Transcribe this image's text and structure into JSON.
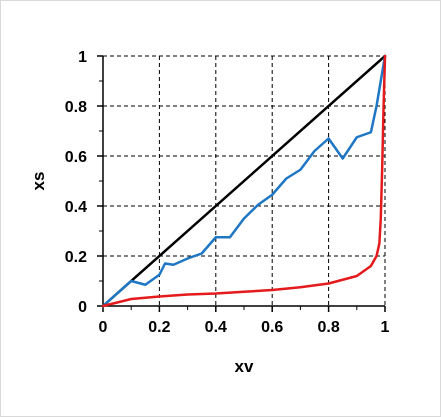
{
  "chart_data": {
    "type": "line",
    "title": "",
    "xlabel": "xv",
    "ylabel": "xs",
    "xlim": [
      0,
      1
    ],
    "ylim": [
      0,
      1
    ],
    "x_ticks": [
      "0",
      "0.2",
      "0.4",
      "0.6",
      "0.8",
      "1"
    ],
    "y_ticks": [
      "0",
      "0.2",
      "0.4",
      "0.6",
      "0.8",
      "1"
    ],
    "x_tick_values": [
      0,
      0.2,
      0.4,
      0.6,
      0.8,
      1
    ],
    "y_tick_values": [
      0,
      0.2,
      0.4,
      0.6,
      0.8,
      1
    ],
    "grid": "dashed",
    "legend": "none",
    "series": [
      {
        "color": "#000000",
        "points": [
          [
            0,
            0
          ],
          [
            1,
            1
          ]
        ]
      },
      {
        "color": "#1f77c4",
        "points": [
          [
            0,
            0
          ],
          [
            0.05,
            0.05
          ],
          [
            0.1,
            0.1
          ],
          [
            0.15,
            0.085
          ],
          [
            0.2,
            0.125
          ],
          [
            0.22,
            0.17
          ],
          [
            0.25,
            0.165
          ],
          [
            0.3,
            0.19
          ],
          [
            0.35,
            0.21
          ],
          [
            0.4,
            0.275
          ],
          [
            0.45,
            0.275
          ],
          [
            0.5,
            0.35
          ],
          [
            0.55,
            0.405
          ],
          [
            0.6,
            0.445
          ],
          [
            0.65,
            0.51
          ],
          [
            0.7,
            0.545
          ],
          [
            0.75,
            0.62
          ],
          [
            0.8,
            0.67
          ],
          [
            0.85,
            0.59
          ],
          [
            0.9,
            0.675
          ],
          [
            0.95,
            0.695
          ],
          [
            0.97,
            0.8
          ],
          [
            1,
            1
          ]
        ]
      },
      {
        "color": "#e41a1c",
        "points": [
          [
            0,
            0
          ],
          [
            0.1,
            0.028
          ],
          [
            0.2,
            0.038
          ],
          [
            0.3,
            0.046
          ],
          [
            0.4,
            0.05
          ],
          [
            0.5,
            0.057
          ],
          [
            0.6,
            0.064
          ],
          [
            0.7,
            0.075
          ],
          [
            0.8,
            0.09
          ],
          [
            0.9,
            0.12
          ],
          [
            0.95,
            0.16
          ],
          [
            0.97,
            0.2
          ],
          [
            0.98,
            0.25
          ],
          [
            0.985,
            0.35
          ],
          [
            0.99,
            0.55
          ],
          [
            0.995,
            0.8
          ],
          [
            1,
            1
          ]
        ]
      }
    ]
  }
}
